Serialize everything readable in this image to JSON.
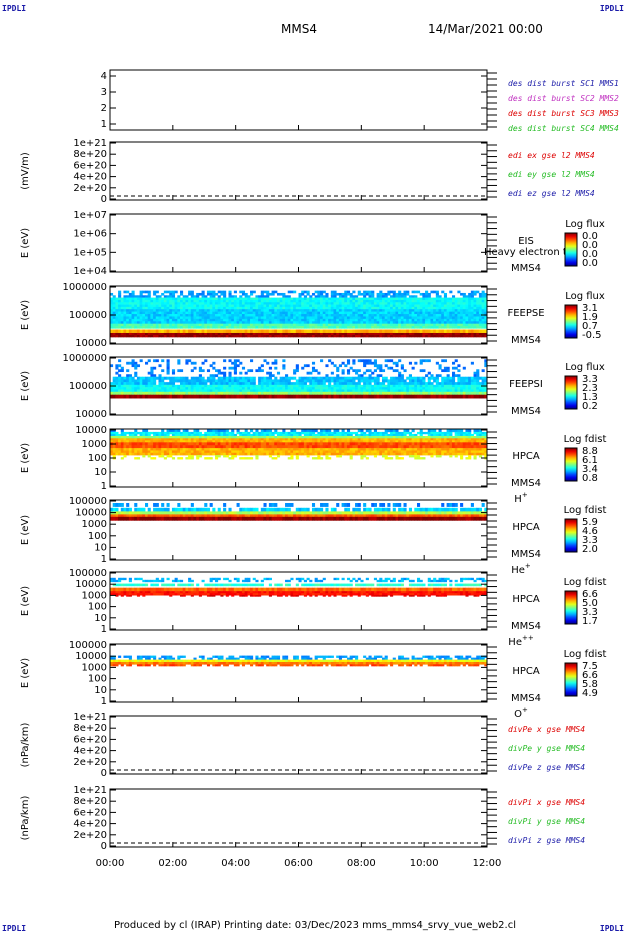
{
  "corner_tl": "IPDLI",
  "corner_tr": "IPDLI",
  "corner_bl": "IPDLI",
  "corner_br": "IPDLI",
  "header": {
    "title": "MMS4",
    "date": "14/Mar/2021 00:00"
  },
  "footer": {
    "text": "Produced by cl (IRAP)   Printing date: 03/Dec/2023   mms_mms4_srvy_vue_web2.cl"
  },
  "time_axis": {
    "ticks": [
      "00:00",
      "02:00",
      "04:00",
      "06:00",
      "08:00",
      "10:00",
      "12:00"
    ]
  },
  "colors": {
    "mms1": "#1a1aa8",
    "mms2": "#c030c0",
    "mms3": "#dd0000",
    "mms4": "#22bb22",
    "x": "#dd0000",
    "y": "#22bb22",
    "z": "#1a1aa8"
  },
  "chart_data": [
    {
      "type": "line",
      "ylabel": "",
      "ytick_labels": [
        "4",
        "3",
        "2",
        "1"
      ],
      "legend": [
        {
          "text": "des dist burst SC1 MMS1",
          "color": "#1a1aa8"
        },
        {
          "text": "des dist burst SC2 MMS2",
          "color": "#c030c0"
        },
        {
          "text": "des dist burst SC3 MMS3",
          "color": "#dd0000"
        },
        {
          "text": "des dist burst SC4 MMS4",
          "color": "#22bb22"
        }
      ]
    },
    {
      "type": "line",
      "ylabel": "(mV/m)",
      "ytick_labels": [
        "1e+21",
        "8e+20",
        "6e+20",
        "4e+20",
        "2e+20",
        "0"
      ],
      "legend": [
        {
          "text": "edi ex gse l2 MMS4",
          "color": "#dd0000"
        },
        {
          "text": "edi ey gse l2 MMS4",
          "color": "#22bb22"
        },
        {
          "text": "edi ez gse l2 MMS4",
          "color": "#1a1aa8"
        }
      ]
    },
    {
      "type": "heatmap",
      "ylabel": "E (eV)",
      "ytick_labels": [
        "1e+07",
        "1e+06",
        "1e+05",
        "1e+04"
      ],
      "instrument": [
        "EIS",
        "MMS4"
      ],
      "overlay": "Heavy electron to",
      "cbar_title": "Log flux",
      "cbar_ticks": [
        "0.0",
        "0.0",
        "0.0",
        "0.0"
      ]
    },
    {
      "type": "heatmap",
      "ylabel": "E (eV)",
      "ytick_labels": [
        "1000000",
        "100000",
        "10000"
      ],
      "instrument": [
        "FEEPSE",
        "MMS4"
      ],
      "cbar_title": "Log flux",
      "cbar_ticks": [
        "3.1",
        "1.9",
        "0.7",
        "-0.5"
      ]
    },
    {
      "type": "heatmap",
      "ylabel": "E (eV)",
      "ytick_labels": [
        "1000000",
        "100000",
        "10000"
      ],
      "instrument": [
        "FEEPSI",
        "MMS4"
      ],
      "cbar_title": "Log flux",
      "cbar_ticks": [
        "3.3",
        "2.3",
        "1.3",
        "0.2"
      ]
    },
    {
      "type": "heatmap",
      "ylabel": "E (eV)",
      "ytick_labels": [
        "10000",
        "1000",
        "100",
        "10",
        "1"
      ],
      "instrument": [
        "HPCA",
        "MMS4"
      ],
      "species": "H",
      "species_sup": "+",
      "cbar_title": "Log fdist",
      "cbar_ticks": [
        "8.8",
        "6.1",
        "3.4",
        "0.8"
      ]
    },
    {
      "type": "heatmap",
      "ylabel": "E (eV)",
      "ytick_labels": [
        "100000",
        "10000",
        "1000",
        "100",
        "10",
        "1"
      ],
      "instrument": [
        "HPCA",
        "MMS4"
      ],
      "species": "He",
      "species_sup": "+",
      "cbar_title": "Log fdist",
      "cbar_ticks": [
        "5.9",
        "4.6",
        "3.3",
        "2.0"
      ]
    },
    {
      "type": "heatmap",
      "ylabel": "E (eV)",
      "ytick_labels": [
        "100000",
        "10000",
        "1000",
        "100",
        "10",
        "1"
      ],
      "instrument": [
        "HPCA",
        "MMS4"
      ],
      "species": "He",
      "species_sup": "++",
      "cbar_title": "Log fdist",
      "cbar_ticks": [
        "6.6",
        "5.0",
        "3.3",
        "1.7"
      ]
    },
    {
      "type": "heatmap",
      "ylabel": "E (eV)",
      "ytick_labels": [
        "100000",
        "10000",
        "1000",
        "100",
        "10",
        "1"
      ],
      "instrument": [
        "HPCA",
        "MMS4"
      ],
      "species": "O",
      "species_sup": "+",
      "cbar_title": "Log fdist",
      "cbar_ticks": [
        "7.5",
        "6.6",
        "5.8",
        "4.9"
      ]
    },
    {
      "type": "line",
      "ylabel": "(nPa/km)",
      "ytick_labels": [
        "1e+21",
        "8e+20",
        "6e+20",
        "4e+20",
        "2e+20",
        "0"
      ],
      "legend": [
        {
          "text": "divPe x gse MMS4",
          "color": "#dd0000"
        },
        {
          "text": "divPe y gse MMS4",
          "color": "#22bb22"
        },
        {
          "text": "divPe z gse MMS4",
          "color": "#1a1aa8"
        }
      ]
    },
    {
      "type": "line",
      "ylabel": "(nPa/km)",
      "ytick_labels": [
        "1e+21",
        "8e+20",
        "6e+20",
        "4e+20",
        "2e+20",
        "0"
      ],
      "legend": [
        {
          "text": "divPi x gse MMS4",
          "color": "#dd0000"
        },
        {
          "text": "divPi y gse MMS4",
          "color": "#22bb22"
        },
        {
          "text": "divPi z gse MMS4",
          "color": "#1a1aa8"
        }
      ]
    }
  ]
}
